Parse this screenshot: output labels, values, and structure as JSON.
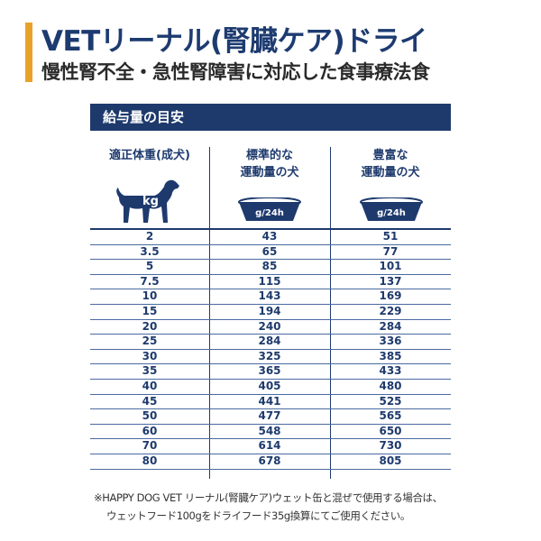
{
  "title": "VETリーナル(腎臓ケア)ドライ",
  "subtitle": "慢性腎不全・急性腎障害に対応した食事療法食",
  "panel_title": "給与量の目安",
  "columns": {
    "weight": "適正体重(成犬)",
    "weight_unit": "kg",
    "standard_line1": "標準的な",
    "standard_line2": "運動量の犬",
    "active_line1": "豊富な",
    "active_line2": "運動量の犬",
    "bowl_unit": "g/24h"
  },
  "rows": [
    {
      "kg": "2",
      "standard": "43",
      "active": "51"
    },
    {
      "kg": "3.5",
      "standard": "65",
      "active": "77"
    },
    {
      "kg": "5",
      "standard": "85",
      "active": "101"
    },
    {
      "kg": "7.5",
      "standard": "115",
      "active": "137"
    },
    {
      "kg": "10",
      "standard": "143",
      "active": "169"
    },
    {
      "kg": "15",
      "standard": "194",
      "active": "229"
    },
    {
      "kg": "20",
      "standard": "240",
      "active": "284"
    },
    {
      "kg": "25",
      "standard": "284",
      "active": "336"
    },
    {
      "kg": "30",
      "standard": "325",
      "active": "385"
    },
    {
      "kg": "35",
      "standard": "365",
      "active": "433"
    },
    {
      "kg": "40",
      "standard": "405",
      "active": "480"
    },
    {
      "kg": "45",
      "standard": "441",
      "active": "525"
    },
    {
      "kg": "50",
      "standard": "477",
      "active": "565"
    },
    {
      "kg": "60",
      "standard": "548",
      "active": "650"
    },
    {
      "kg": "70",
      "standard": "614",
      "active": "730"
    },
    {
      "kg": "80",
      "standard": "678",
      "active": "805"
    }
  ],
  "note_line1": "※HAPPY DOG VET リーナル(腎臓ケア)ウェット缶と混ぜで使用する場合は、",
  "note_line2": "ウェットフード100gをドライフード35g換算にてご使用ください。",
  "colors": {
    "navy": "#1e3a6d",
    "accent": "#e8a22a"
  },
  "icons": [
    "dog-silhouette-icon",
    "food-bowl-icon"
  ]
}
